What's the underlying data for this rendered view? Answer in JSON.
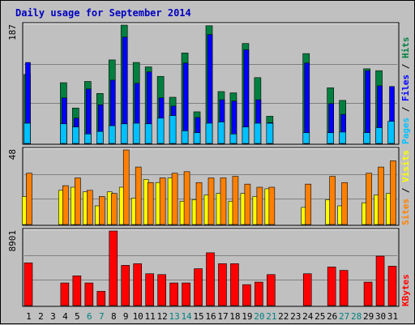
{
  "title": "Daily usage for September 2014",
  "colors": {
    "background": "#c0c0c0",
    "plot_bg": "#c0c0c0",
    "title": "#0000c0",
    "hits": "#008040",
    "files": "#0000ff",
    "pages": "#00c0ff",
    "visits": "#ff8000",
    "sites": "#ffff00",
    "kbytes": "#ff0000",
    "weekend_day": "#008080",
    "weekday": "#000000"
  },
  "chart_data": [
    {
      "type": "bar",
      "panel": "top",
      "max_label": "187",
      "categories": [
        "1",
        "2",
        "3",
        "4",
        "5",
        "6",
        "7",
        "8",
        "9",
        "10",
        "11",
        "12",
        "13",
        "14",
        "15",
        "16",
        "17",
        "18",
        "19",
        "20",
        "21",
        "22",
        "23",
        "24",
        "25",
        "26",
        "27",
        "28",
        "29",
        "30",
        "31"
      ],
      "side_labels": [
        "Pages",
        "Files",
        "Hits"
      ],
      "ylim": [
        0,
        187
      ],
      "series": [
        {
          "name": "Hits",
          "values": [
            109,
            0,
            0,
            96,
            56,
            98,
            79,
            132,
            187,
            128,
            121,
            106,
            73,
            143,
            50,
            186,
            82,
            80,
            158,
            104,
            43,
            0,
            0,
            142,
            0,
            88,
            68,
            0,
            118,
            115,
            0
          ],
          "color_key": "hits"
        },
        {
          "name": "Files",
          "values": [
            128,
            0,
            0,
            72,
            40,
            86,
            61,
            100,
            168,
            95,
            113,
            72,
            59,
            127,
            41,
            172,
            69,
            67,
            148,
            69,
            33,
            0,
            0,
            127,
            0,
            63,
            46,
            0,
            115,
            91,
            90
          ],
          "color_key": "files"
        },
        {
          "name": "Pages",
          "values": [
            32,
            0,
            0,
            31,
            26,
            15,
            19,
            28,
            31,
            32,
            31,
            40,
            44,
            20,
            17,
            32,
            34,
            15,
            26,
            32,
            32,
            0,
            0,
            17,
            0,
            17,
            18,
            0,
            17,
            25,
            35
          ],
          "color_key": "pages"
        }
      ]
    },
    {
      "type": "bar",
      "panel": "middle",
      "max_label": "48",
      "categories": [
        "1",
        "2",
        "3",
        "4",
        "5",
        "6",
        "7",
        "8",
        "9",
        "10",
        "11",
        "12",
        "13",
        "14",
        "15",
        "16",
        "17",
        "18",
        "19",
        "20",
        "21",
        "22",
        "23",
        "24",
        "25",
        "26",
        "27",
        "28",
        "29",
        "30",
        "31"
      ],
      "side_labels": [
        "Sites",
        "Visits",
        "Hits"
      ],
      "ylim": [
        0,
        48
      ],
      "series": [
        {
          "name": "Visits",
          "values": [
            33,
            0,
            0,
            25,
            30,
            22,
            18,
            20,
            48,
            37,
            27,
            30,
            33,
            34,
            27,
            30,
            30,
            31,
            26,
            24,
            24,
            0,
            0,
            26,
            0,
            31,
            27,
            0,
            33,
            37,
            41
          ],
          "color_key": "visits"
        },
        {
          "name": "Sites",
          "values": [
            18,
            0,
            0,
            22,
            24,
            21,
            12,
            21,
            24,
            17,
            29,
            27,
            30,
            15,
            16,
            19,
            20,
            15,
            20,
            18,
            23,
            0,
            0,
            11,
            0,
            16,
            12,
            0,
            14,
            19,
            20
          ],
          "color_key": "sites"
        }
      ]
    },
    {
      "type": "bar",
      "panel": "bottom",
      "max_label": "8901",
      "categories": [
        "1",
        "2",
        "3",
        "4",
        "5",
        "6",
        "7",
        "8",
        "9",
        "10",
        "11",
        "12",
        "13",
        "14",
        "15",
        "16",
        "17",
        "18",
        "19",
        "20",
        "21",
        "22",
        "23",
        "24",
        "25",
        "26",
        "27",
        "28",
        "29",
        "30",
        "31"
      ],
      "side_labels": [
        "KBytes"
      ],
      "ylim": [
        0,
        8901
      ],
      "series": [
        {
          "name": "KBytes",
          "values": [
            5100,
            0,
            0,
            2700,
            3550,
            2700,
            1700,
            8901,
            4800,
            5000,
            3800,
            3700,
            2700,
            2700,
            4400,
            6300,
            5000,
            5000,
            2500,
            2800,
            3700,
            0,
            0,
            3800,
            0,
            4600,
            4200,
            0,
            2800,
            5900,
            4700
          ],
          "color_key": "kbytes"
        }
      ]
    }
  ],
  "x_axis": {
    "weekend_days": [
      "6",
      "7",
      "13",
      "14",
      "20",
      "21",
      "27",
      "28"
    ]
  }
}
